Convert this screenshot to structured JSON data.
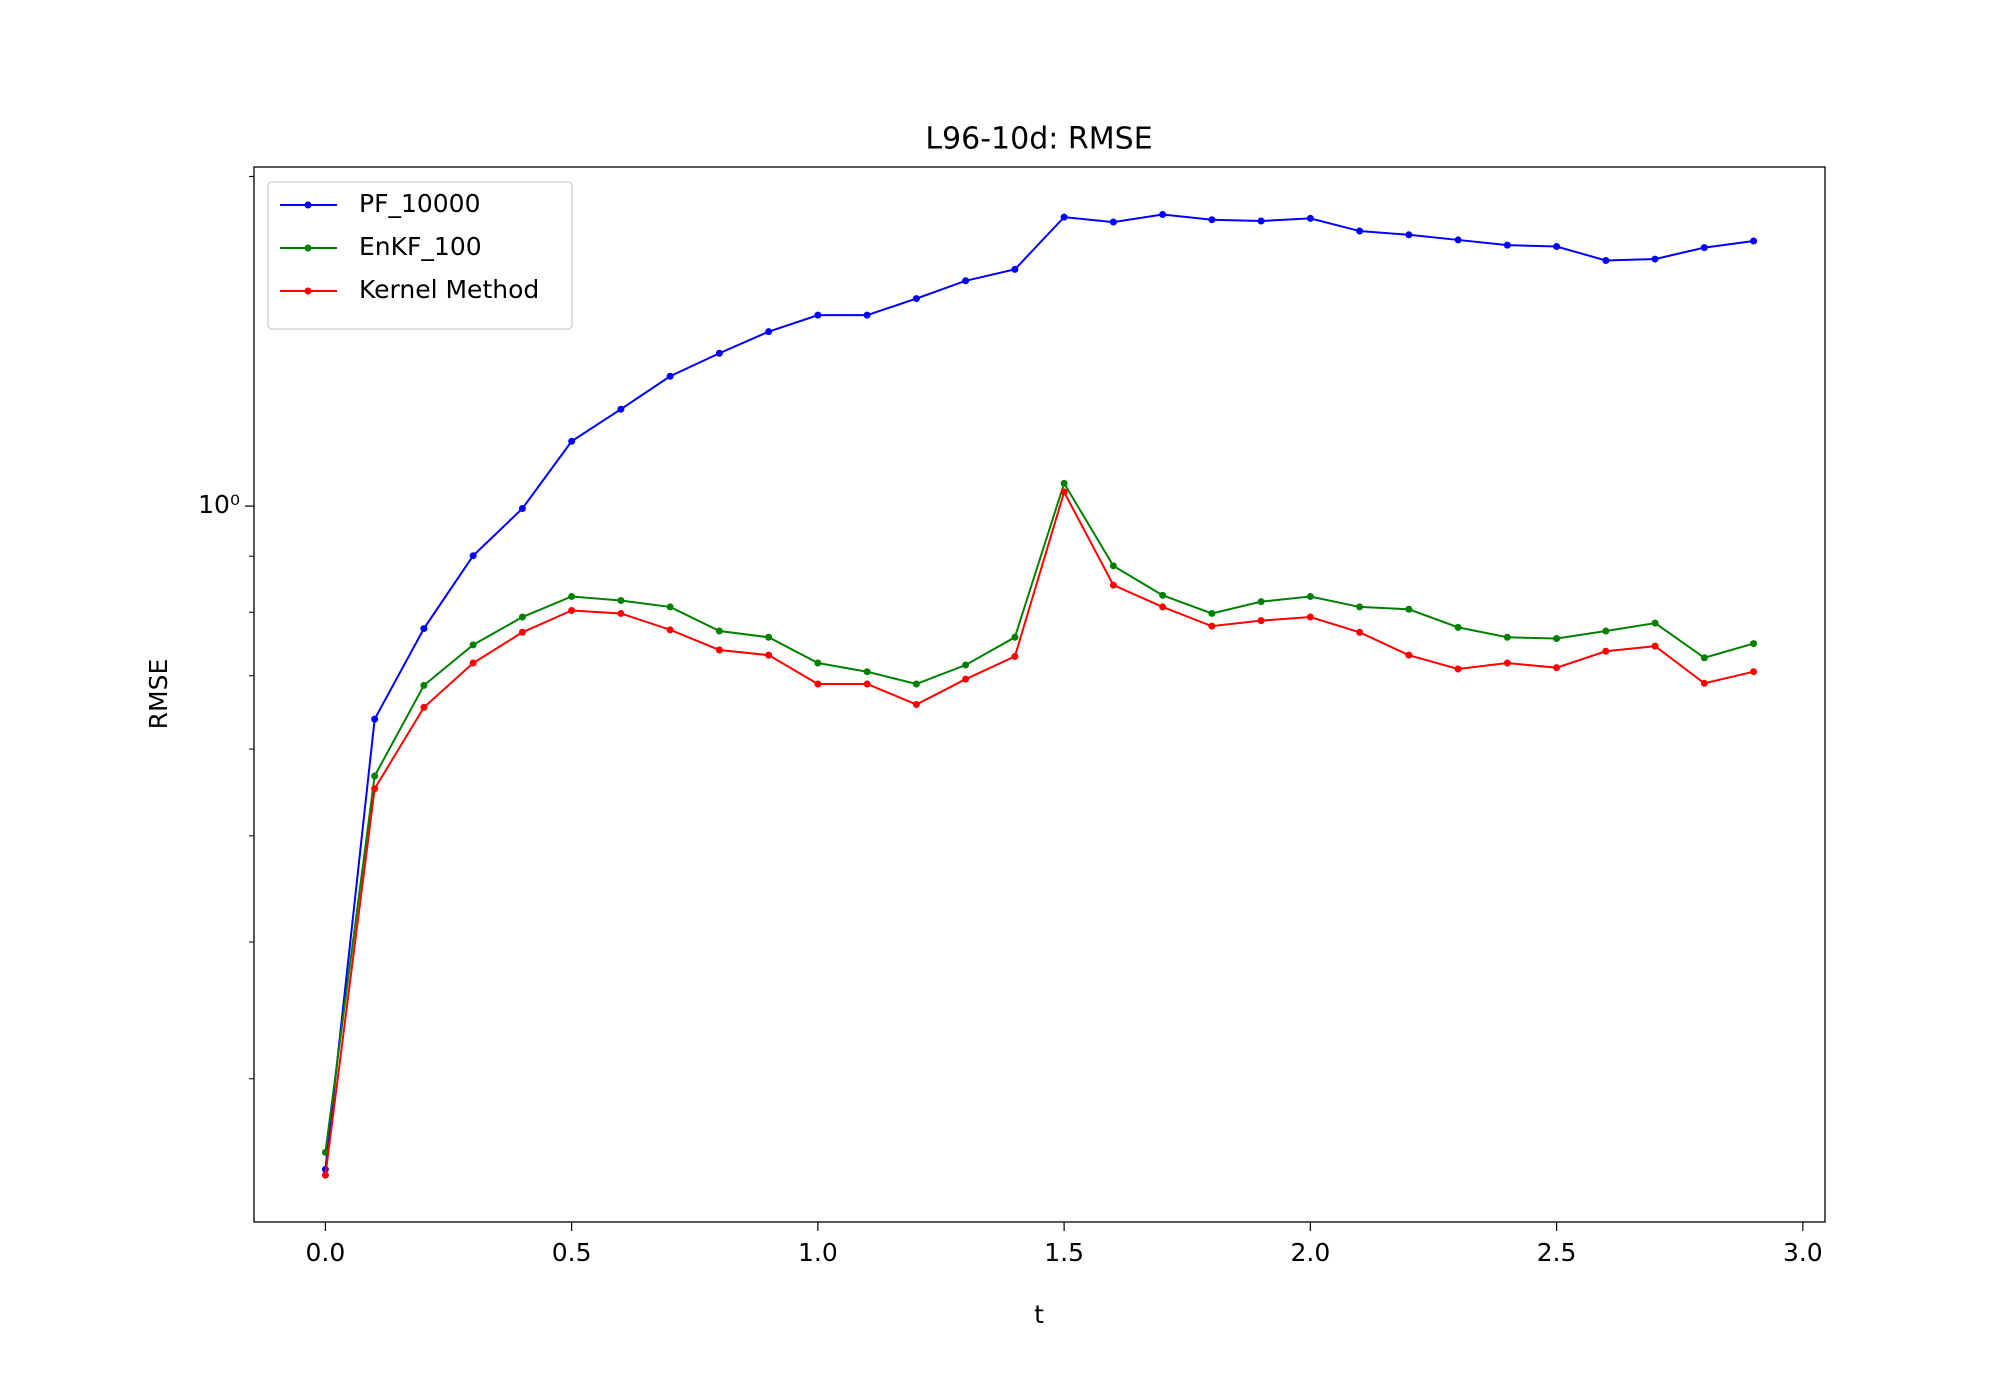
{
  "chart_data": {
    "type": "line",
    "title": "L96-10d: RMSE",
    "xlabel": "t",
    "ylabel": "RMSE",
    "yscale": "log",
    "legend": "upper left",
    "x": [
      0.0,
      0.1,
      0.2,
      0.3,
      0.4,
      0.5,
      0.6,
      0.7,
      0.8,
      0.9,
      1.0,
      1.1,
      1.2,
      1.3,
      1.4,
      1.5,
      1.6,
      1.7,
      1.8,
      1.9,
      2.0,
      2.1,
      2.2,
      2.3,
      2.4,
      2.5,
      2.6,
      2.7,
      2.8,
      2.9
    ],
    "series": [
      {
        "name": "PF_10000",
        "color": "#0000ff",
        "values": [
          0.248,
          0.639,
          0.773,
          0.901,
          0.995,
          1.146,
          1.226,
          1.314,
          1.379,
          1.443,
          1.494,
          1.494,
          1.547,
          1.606,
          1.645,
          1.836,
          1.817,
          1.846,
          1.826,
          1.821,
          1.831,
          1.783,
          1.769,
          1.75,
          1.731,
          1.726,
          1.676,
          1.681,
          1.722,
          1.746
        ]
      },
      {
        "name": "EnKF_100",
        "color": "#008000",
        "values": [
          0.257,
          0.567,
          0.686,
          0.747,
          0.792,
          0.827,
          0.82,
          0.809,
          0.769,
          0.759,
          0.719,
          0.706,
          0.688,
          0.716,
          0.759,
          1.049,
          0.882,
          0.829,
          0.798,
          0.818,
          0.827,
          0.809,
          0.805,
          0.775,
          0.759,
          0.757,
          0.769,
          0.782,
          0.727,
          0.749
        ]
      },
      {
        "name": "Kernel Method",
        "color": "#ff0000",
        "values": [
          0.245,
          0.552,
          0.655,
          0.719,
          0.767,
          0.803,
          0.798,
          0.771,
          0.739,
          0.731,
          0.688,
          0.688,
          0.659,
          0.695,
          0.729,
          1.03,
          0.847,
          0.809,
          0.777,
          0.786,
          0.792,
          0.767,
          0.731,
          0.71,
          0.719,
          0.712,
          0.737,
          0.745,
          0.689,
          0.706
        ]
      }
    ],
    "xlim": [
      -0.145,
      3.045
    ],
    "xticks": [
      {
        "value": 0,
        "label": "0.0"
      },
      {
        "value": 0.5,
        "label": "0.5"
      },
      {
        "value": 1,
        "label": "1.0"
      },
      {
        "value": 1.5,
        "label": "1.5"
      },
      {
        "value": 2,
        "label": "2.0"
      },
      {
        "value": 2.5,
        "label": "2.5"
      },
      {
        "value": 3,
        "label": "3.0"
      }
    ],
    "ylim": [
      0.222,
      2.04
    ],
    "yticks": [
      {
        "value": 1,
        "label": "10⁰"
      }
    ],
    "yminorticks": [
      0.3,
      0.4,
      0.5,
      0.6,
      0.7,
      0.8,
      0.9,
      2
    ]
  }
}
